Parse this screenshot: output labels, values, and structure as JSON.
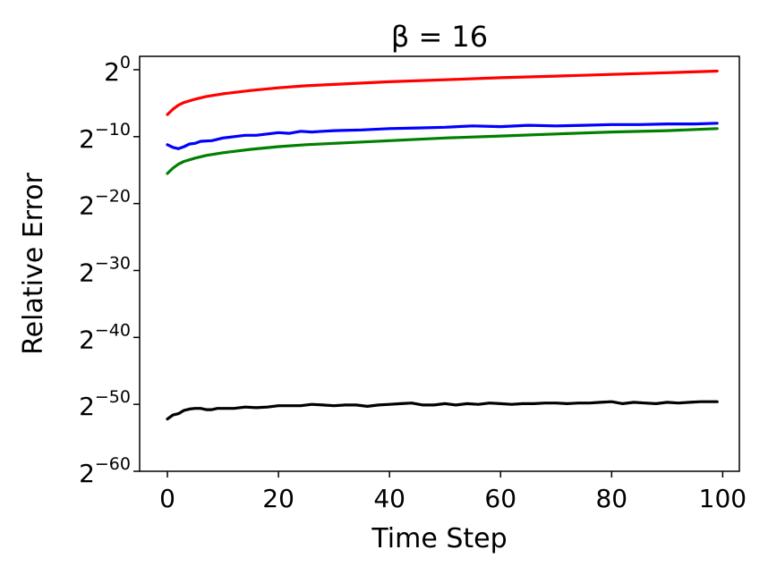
{
  "chart_data": {
    "type": "line",
    "title": "β = 16",
    "xlabel": "Time Step",
    "ylabel": "Relative Error",
    "xlim": [
      -5,
      103
    ],
    "ylim": [
      -60,
      2
    ],
    "y_scale": "log2",
    "x_ticks": [
      0,
      20,
      40,
      60,
      80,
      100
    ],
    "x_tick_labels": [
      "0",
      "20",
      "40",
      "60",
      "80",
      "100"
    ],
    "y_ticks": [
      0,
      -10,
      -20,
      -30,
      -40,
      -50,
      -60
    ],
    "y_tick_labels": [
      {
        "base": "2",
        "exp": "0"
      },
      {
        "base": "2",
        "exp": "−10"
      },
      {
        "base": "2",
        "exp": "−20"
      },
      {
        "base": "2",
        "exp": "−30"
      },
      {
        "base": "2",
        "exp": "−40"
      },
      {
        "base": "2",
        "exp": "−50"
      },
      {
        "base": "2",
        "exp": "−60"
      }
    ],
    "grid": false,
    "series": [
      {
        "color": "#ff0000",
        "x": [
          0,
          1,
          2,
          3,
          5,
          7,
          10,
          15,
          20,
          25,
          30,
          40,
          50,
          60,
          70,
          80,
          90,
          99
        ],
        "y": [
          -6.7,
          -5.9,
          -5.3,
          -4.9,
          -4.4,
          -4.0,
          -3.6,
          -3.1,
          -2.7,
          -2.4,
          -2.2,
          -1.8,
          -1.5,
          -1.2,
          -0.95,
          -0.7,
          -0.45,
          -0.2
        ]
      },
      {
        "color": "#0000ff",
        "x": [
          0,
          1,
          2,
          3,
          4,
          5,
          6,
          8,
          10,
          12,
          14,
          16,
          18,
          20,
          22,
          24,
          26,
          28,
          30,
          35,
          40,
          45,
          50,
          55,
          60,
          65,
          70,
          75,
          80,
          85,
          90,
          95,
          99
        ],
        "y": [
          -11.2,
          -11.6,
          -11.8,
          -11.5,
          -11.1,
          -11.0,
          -10.7,
          -10.6,
          -10.2,
          -10.0,
          -9.8,
          -9.8,
          -9.6,
          -9.4,
          -9.5,
          -9.2,
          -9.3,
          -9.2,
          -9.1,
          -9.0,
          -8.8,
          -8.7,
          -8.6,
          -8.4,
          -8.5,
          -8.3,
          -8.4,
          -8.3,
          -8.2,
          -8.2,
          -8.1,
          -8.1,
          -8.0
        ]
      },
      {
        "color": "#008000",
        "x": [
          0,
          1,
          2,
          3,
          5,
          7,
          10,
          15,
          20,
          25,
          30,
          40,
          50,
          60,
          70,
          80,
          90,
          99
        ],
        "y": [
          -15.5,
          -14.7,
          -14.1,
          -13.7,
          -13.2,
          -12.8,
          -12.4,
          -11.9,
          -11.5,
          -11.2,
          -11.0,
          -10.6,
          -10.2,
          -9.9,
          -9.6,
          -9.3,
          -9.1,
          -8.8
        ]
      },
      {
        "color": "#000000",
        "x": [
          0,
          1,
          2,
          3,
          4,
          5,
          6,
          7,
          8,
          9,
          10,
          12,
          14,
          16,
          18,
          20,
          22,
          24,
          26,
          28,
          30,
          32,
          34,
          36,
          38,
          40,
          42,
          44,
          46,
          48,
          50,
          52,
          54,
          56,
          58,
          60,
          62,
          64,
          66,
          68,
          70,
          72,
          74,
          76,
          78,
          80,
          82,
          84,
          86,
          88,
          90,
          92,
          94,
          96,
          99
        ],
        "y": [
          -52.2,
          -51.6,
          -51.4,
          -50.9,
          -50.7,
          -50.6,
          -50.6,
          -50.8,
          -50.8,
          -50.6,
          -50.6,
          -50.6,
          -50.4,
          -50.5,
          -50.4,
          -50.2,
          -50.2,
          -50.2,
          -50.0,
          -50.1,
          -50.2,
          -50.1,
          -50.1,
          -50.3,
          -50.1,
          -50.0,
          -49.9,
          -49.8,
          -50.1,
          -50.1,
          -49.9,
          -50.1,
          -49.9,
          -50.0,
          -49.8,
          -49.9,
          -50.0,
          -49.9,
          -49.9,
          -49.8,
          -49.8,
          -49.9,
          -49.8,
          -49.8,
          -49.7,
          -49.6,
          -49.9,
          -49.7,
          -49.8,
          -49.9,
          -49.7,
          -49.8,
          -49.7,
          -49.6,
          -49.6
        ]
      }
    ]
  }
}
